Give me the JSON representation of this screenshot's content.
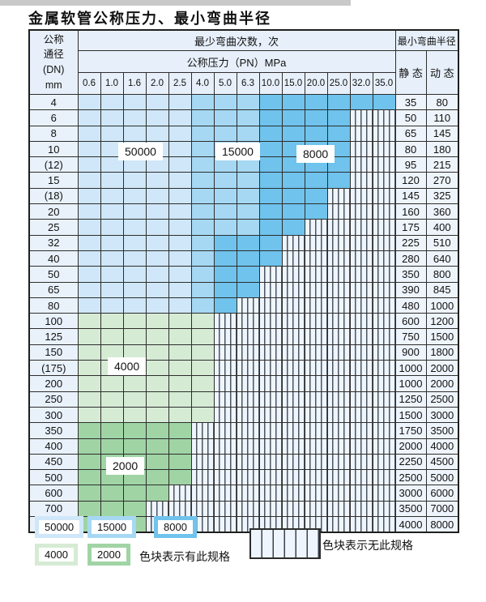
{
  "title": "金属软管公称压力、最小弯曲半径",
  "colors": {
    "r50000": "#cfe7f8",
    "r15000": "#a6d8f3",
    "r8000": "#6fc3ec",
    "r4000": "#d6ebd4",
    "r2000": "#a0d4a5",
    "hatch_bg": "#eff5fc",
    "hatch_line": "#4a5560",
    "grid": "#2d2d2d",
    "header_bg": "#e7f0fa",
    "label_bg": "#e9f2fb",
    "value_bg": "#eef4fb",
    "strip": "#c9c9c9",
    "title_color": "#111111"
  },
  "table": {
    "corner": [
      "公称",
      "通径",
      "(DN)",
      "mm"
    ],
    "bend_cycles_header": "最少弯曲次数，次",
    "pressure_header": "公称压力（PN）MPa",
    "min_radius_header": "最小弯曲半径",
    "static_header": "静 态",
    "dynamic_header": "动 态",
    "pressure_columns": [
      "0.6",
      "1.0",
      "1.6",
      "2.0",
      "2.5",
      "4.0",
      "5.0",
      "6.3",
      "10.0",
      "15.0",
      "20.0",
      "25.0",
      "32.0",
      "35.0"
    ],
    "rows": [
      {
        "dn": "4",
        "bands": [
          [
            "50000",
            5
          ],
          [
            "15000",
            3
          ],
          [
            "8000",
            6
          ]
        ],
        "static": "35",
        "dynamic": "80"
      },
      {
        "dn": "6",
        "bands": [
          [
            "50000",
            5
          ],
          [
            "15000",
            3
          ],
          [
            "8000",
            4
          ],
          [
            "none",
            2
          ]
        ],
        "static": "50",
        "dynamic": "110"
      },
      {
        "dn": "8",
        "bands": [
          [
            "50000",
            5
          ],
          [
            "15000",
            3
          ],
          [
            "8000",
            4
          ],
          [
            "none",
            2
          ]
        ],
        "static": "65",
        "dynamic": "145"
      },
      {
        "dn": "10",
        "bands": [
          [
            "50000",
            5
          ],
          [
            "15000",
            3
          ],
          [
            "8000",
            4
          ],
          [
            "none",
            2
          ]
        ],
        "static": "80",
        "dynamic": "180"
      },
      {
        "dn": "(12)",
        "bands": [
          [
            "50000",
            5
          ],
          [
            "15000",
            3
          ],
          [
            "8000",
            4
          ],
          [
            "none",
            2
          ]
        ],
        "static": "95",
        "dynamic": "215"
      },
      {
        "dn": "15",
        "bands": [
          [
            "50000",
            5
          ],
          [
            "15000",
            3
          ],
          [
            "8000",
            4
          ],
          [
            "none",
            2
          ]
        ],
        "static": "120",
        "dynamic": "270"
      },
      {
        "dn": "(18)",
        "bands": [
          [
            "50000",
            5
          ],
          [
            "15000",
            3
          ],
          [
            "8000",
            3
          ],
          [
            "none",
            3
          ]
        ],
        "static": "145",
        "dynamic": "325"
      },
      {
        "dn": "20",
        "bands": [
          [
            "50000",
            5
          ],
          [
            "15000",
            3
          ],
          [
            "8000",
            3
          ],
          [
            "none",
            3
          ]
        ],
        "static": "160",
        "dynamic": "360"
      },
      {
        "dn": "25",
        "bands": [
          [
            "50000",
            5
          ],
          [
            "15000",
            3
          ],
          [
            "8000",
            2
          ],
          [
            "none",
            4
          ]
        ],
        "static": "175",
        "dynamic": "400"
      },
      {
        "dn": "32",
        "bands": [
          [
            "50000",
            5
          ],
          [
            "15000",
            1
          ],
          [
            "8000",
            3
          ],
          [
            "none",
            5
          ]
        ],
        "static": "225",
        "dynamic": "510"
      },
      {
        "dn": "40",
        "bands": [
          [
            "50000",
            5
          ],
          [
            "15000",
            1
          ],
          [
            "8000",
            3
          ],
          [
            "none",
            5
          ]
        ],
        "static": "280",
        "dynamic": "640"
      },
      {
        "dn": "50",
        "bands": [
          [
            "50000",
            5
          ],
          [
            "15000",
            1
          ],
          [
            "8000",
            2
          ],
          [
            "none",
            6
          ]
        ],
        "static": "350",
        "dynamic": "800"
      },
      {
        "dn": "65",
        "bands": [
          [
            "50000",
            5
          ],
          [
            "15000",
            1
          ],
          [
            "8000",
            2
          ],
          [
            "none",
            6
          ]
        ],
        "static": "390",
        "dynamic": "845"
      },
      {
        "dn": "80",
        "bands": [
          [
            "50000",
            5
          ],
          [
            "15000",
            1
          ],
          [
            "8000",
            1
          ],
          [
            "none",
            7
          ]
        ],
        "static": "480",
        "dynamic": "1000"
      },
      {
        "dn": "100",
        "bands": [
          [
            "4000",
            6
          ],
          [
            "none",
            8
          ]
        ],
        "static": "600",
        "dynamic": "1200"
      },
      {
        "dn": "125",
        "bands": [
          [
            "4000",
            6
          ],
          [
            "none",
            8
          ]
        ],
        "static": "750",
        "dynamic": "1500"
      },
      {
        "dn": "150",
        "bands": [
          [
            "4000",
            6
          ],
          [
            "none",
            8
          ]
        ],
        "static": "900",
        "dynamic": "1800"
      },
      {
        "dn": "(175)",
        "bands": [
          [
            "4000",
            6
          ],
          [
            "none",
            8
          ]
        ],
        "static": "1000",
        "dynamic": "2000"
      },
      {
        "dn": "200",
        "bands": [
          [
            "4000",
            6
          ],
          [
            "none",
            8
          ]
        ],
        "static": "1000",
        "dynamic": "2000"
      },
      {
        "dn": "250",
        "bands": [
          [
            "4000",
            6
          ],
          [
            "none",
            8
          ]
        ],
        "static": "1250",
        "dynamic": "2500"
      },
      {
        "dn": "300",
        "bands": [
          [
            "4000",
            6
          ],
          [
            "none",
            8
          ]
        ],
        "static": "1500",
        "dynamic": "3000"
      },
      {
        "dn": "350",
        "bands": [
          [
            "2000",
            5
          ],
          [
            "none",
            9
          ]
        ],
        "static": "1750",
        "dynamic": "3500"
      },
      {
        "dn": "400",
        "bands": [
          [
            "2000",
            5
          ],
          [
            "none",
            9
          ]
        ],
        "static": "2000",
        "dynamic": "4000"
      },
      {
        "dn": "450",
        "bands": [
          [
            "2000",
            5
          ],
          [
            "none",
            9
          ]
        ],
        "static": "2250",
        "dynamic": "4500"
      },
      {
        "dn": "500",
        "bands": [
          [
            "2000",
            5
          ],
          [
            "none",
            9
          ]
        ],
        "static": "2500",
        "dynamic": "5000"
      },
      {
        "dn": "600",
        "bands": [
          [
            "2000",
            4
          ],
          [
            "none",
            10
          ]
        ],
        "static": "3000",
        "dynamic": "6000"
      },
      {
        "dn": "700",
        "bands": [
          [
            "2000",
            3
          ],
          [
            "none",
            11
          ]
        ],
        "static": "3500",
        "dynamic": "7000"
      },
      {
        "dn": "800",
        "bands": [
          [
            "2000",
            3
          ],
          [
            "none",
            11
          ]
        ],
        "static": "4000",
        "dynamic": "8000"
      }
    ]
  },
  "overlays": [
    "50000",
    "15000",
    "8000",
    "4000",
    "2000"
  ],
  "legend": {
    "swatches": [
      {
        "label": "50000"
      },
      {
        "label": "15000"
      },
      {
        "label": "8000"
      },
      {
        "label": "4000"
      },
      {
        "label": "2000"
      }
    ],
    "has_spec_text": "色块表示有此规格",
    "no_spec_text": "色块表示无此规格"
  }
}
